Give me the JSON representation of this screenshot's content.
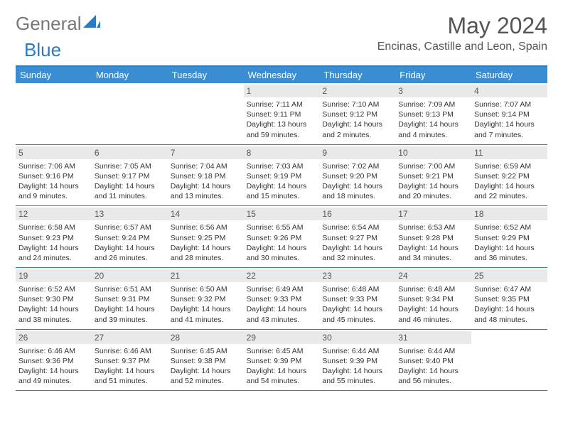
{
  "brand": {
    "part1": "General",
    "part2": "Blue"
  },
  "title": "May 2024",
  "location": "Encinas, Castille and Leon, Spain",
  "colors": {
    "accent": "#3b8dd1",
    "rule": "#2b7bbf",
    "daybg": "#e9e9e9",
    "text": "#333333",
    "muted": "#555555"
  },
  "day_labels": [
    "Sunday",
    "Monday",
    "Tuesday",
    "Wednesday",
    "Thursday",
    "Friday",
    "Saturday"
  ],
  "weeks": [
    [
      {
        "empty": true
      },
      {
        "empty": true
      },
      {
        "empty": true
      },
      {
        "day": "1",
        "sunrise": "Sunrise: 7:11 AM",
        "sunset": "Sunset: 9:11 PM",
        "daylight": "Daylight: 13 hours and 59 minutes."
      },
      {
        "day": "2",
        "sunrise": "Sunrise: 7:10 AM",
        "sunset": "Sunset: 9:12 PM",
        "daylight": "Daylight: 14 hours and 2 minutes."
      },
      {
        "day": "3",
        "sunrise": "Sunrise: 7:09 AM",
        "sunset": "Sunset: 9:13 PM",
        "daylight": "Daylight: 14 hours and 4 minutes."
      },
      {
        "day": "4",
        "sunrise": "Sunrise: 7:07 AM",
        "sunset": "Sunset: 9:14 PM",
        "daylight": "Daylight: 14 hours and 7 minutes."
      }
    ],
    [
      {
        "day": "5",
        "sunrise": "Sunrise: 7:06 AM",
        "sunset": "Sunset: 9:16 PM",
        "daylight": "Daylight: 14 hours and 9 minutes."
      },
      {
        "day": "6",
        "sunrise": "Sunrise: 7:05 AM",
        "sunset": "Sunset: 9:17 PM",
        "daylight": "Daylight: 14 hours and 11 minutes."
      },
      {
        "day": "7",
        "sunrise": "Sunrise: 7:04 AM",
        "sunset": "Sunset: 9:18 PM",
        "daylight": "Daylight: 14 hours and 13 minutes."
      },
      {
        "day": "8",
        "sunrise": "Sunrise: 7:03 AM",
        "sunset": "Sunset: 9:19 PM",
        "daylight": "Daylight: 14 hours and 15 minutes."
      },
      {
        "day": "9",
        "sunrise": "Sunrise: 7:02 AM",
        "sunset": "Sunset: 9:20 PM",
        "daylight": "Daylight: 14 hours and 18 minutes."
      },
      {
        "day": "10",
        "sunrise": "Sunrise: 7:00 AM",
        "sunset": "Sunset: 9:21 PM",
        "daylight": "Daylight: 14 hours and 20 minutes."
      },
      {
        "day": "11",
        "sunrise": "Sunrise: 6:59 AM",
        "sunset": "Sunset: 9:22 PM",
        "daylight": "Daylight: 14 hours and 22 minutes."
      }
    ],
    [
      {
        "day": "12",
        "sunrise": "Sunrise: 6:58 AM",
        "sunset": "Sunset: 9:23 PM",
        "daylight": "Daylight: 14 hours and 24 minutes."
      },
      {
        "day": "13",
        "sunrise": "Sunrise: 6:57 AM",
        "sunset": "Sunset: 9:24 PM",
        "daylight": "Daylight: 14 hours and 26 minutes."
      },
      {
        "day": "14",
        "sunrise": "Sunrise: 6:56 AM",
        "sunset": "Sunset: 9:25 PM",
        "daylight": "Daylight: 14 hours and 28 minutes."
      },
      {
        "day": "15",
        "sunrise": "Sunrise: 6:55 AM",
        "sunset": "Sunset: 9:26 PM",
        "daylight": "Daylight: 14 hours and 30 minutes."
      },
      {
        "day": "16",
        "sunrise": "Sunrise: 6:54 AM",
        "sunset": "Sunset: 9:27 PM",
        "daylight": "Daylight: 14 hours and 32 minutes."
      },
      {
        "day": "17",
        "sunrise": "Sunrise: 6:53 AM",
        "sunset": "Sunset: 9:28 PM",
        "daylight": "Daylight: 14 hours and 34 minutes."
      },
      {
        "day": "18",
        "sunrise": "Sunrise: 6:52 AM",
        "sunset": "Sunset: 9:29 PM",
        "daylight": "Daylight: 14 hours and 36 minutes."
      }
    ],
    [
      {
        "day": "19",
        "sunrise": "Sunrise: 6:52 AM",
        "sunset": "Sunset: 9:30 PM",
        "daylight": "Daylight: 14 hours and 38 minutes."
      },
      {
        "day": "20",
        "sunrise": "Sunrise: 6:51 AM",
        "sunset": "Sunset: 9:31 PM",
        "daylight": "Daylight: 14 hours and 39 minutes."
      },
      {
        "day": "21",
        "sunrise": "Sunrise: 6:50 AM",
        "sunset": "Sunset: 9:32 PM",
        "daylight": "Daylight: 14 hours and 41 minutes."
      },
      {
        "day": "22",
        "sunrise": "Sunrise: 6:49 AM",
        "sunset": "Sunset: 9:33 PM",
        "daylight": "Daylight: 14 hours and 43 minutes."
      },
      {
        "day": "23",
        "sunrise": "Sunrise: 6:48 AM",
        "sunset": "Sunset: 9:33 PM",
        "daylight": "Daylight: 14 hours and 45 minutes."
      },
      {
        "day": "24",
        "sunrise": "Sunrise: 6:48 AM",
        "sunset": "Sunset: 9:34 PM",
        "daylight": "Daylight: 14 hours and 46 minutes."
      },
      {
        "day": "25",
        "sunrise": "Sunrise: 6:47 AM",
        "sunset": "Sunset: 9:35 PM",
        "daylight": "Daylight: 14 hours and 48 minutes."
      }
    ],
    [
      {
        "day": "26",
        "sunrise": "Sunrise: 6:46 AM",
        "sunset": "Sunset: 9:36 PM",
        "daylight": "Daylight: 14 hours and 49 minutes."
      },
      {
        "day": "27",
        "sunrise": "Sunrise: 6:46 AM",
        "sunset": "Sunset: 9:37 PM",
        "daylight": "Daylight: 14 hours and 51 minutes."
      },
      {
        "day": "28",
        "sunrise": "Sunrise: 6:45 AM",
        "sunset": "Sunset: 9:38 PM",
        "daylight": "Daylight: 14 hours and 52 minutes."
      },
      {
        "day": "29",
        "sunrise": "Sunrise: 6:45 AM",
        "sunset": "Sunset: 9:39 PM",
        "daylight": "Daylight: 14 hours and 54 minutes."
      },
      {
        "day": "30",
        "sunrise": "Sunrise: 6:44 AM",
        "sunset": "Sunset: 9:39 PM",
        "daylight": "Daylight: 14 hours and 55 minutes."
      },
      {
        "day": "31",
        "sunrise": "Sunrise: 6:44 AM",
        "sunset": "Sunset: 9:40 PM",
        "daylight": "Daylight: 14 hours and 56 minutes."
      },
      {
        "empty": true
      }
    ]
  ]
}
